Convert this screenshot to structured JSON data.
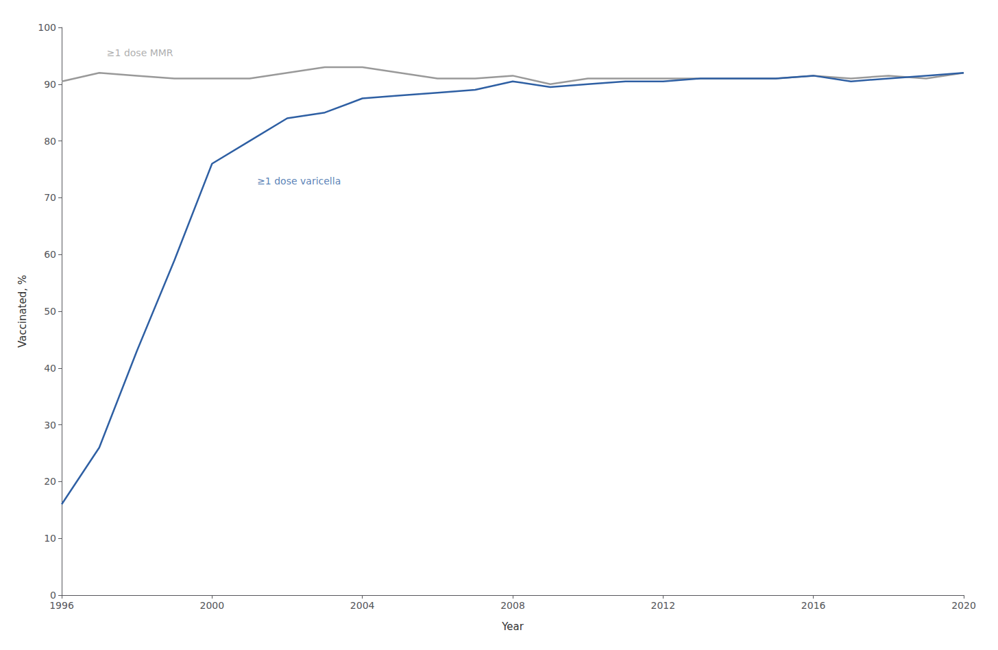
{
  "chart_data": {
    "type": "line",
    "x": [
      1996,
      1997,
      1998,
      1999,
      2000,
      2001,
      2002,
      2003,
      2004,
      2005,
      2006,
      2007,
      2008,
      2009,
      2010,
      2011,
      2012,
      2013,
      2014,
      2015,
      2016,
      2017,
      2018,
      2019,
      2020
    ],
    "series": [
      {
        "name": "≥1 dose MMR",
        "color": "#999999",
        "values": [
          90.5,
          92,
          91.5,
          91,
          91,
          91,
          92,
          93,
          93,
          92,
          91,
          91,
          91.5,
          90,
          91,
          91,
          91,
          91,
          91,
          91,
          91.5,
          91,
          91.5,
          91,
          92
        ]
      },
      {
        "name": "≥1 dose varicella",
        "color": "#2E5FA3",
        "values": [
          16,
          26,
          43,
          59,
          76,
          80,
          84,
          85,
          87.5,
          88,
          88.5,
          89,
          90.5,
          89.5,
          90,
          90.5,
          90.5,
          91,
          91,
          91,
          91.5,
          90.5,
          91,
          91.5,
          92
        ]
      }
    ],
    "annotations": [
      {
        "text": "≥1 dose MMR",
        "x": 1997.2,
        "y": 95.5,
        "color": "#999999"
      },
      {
        "text": "≥1 dose varicella",
        "x": 2001.2,
        "y": 73,
        "color": "#2E5FA3"
      }
    ],
    "xlabel": "Year",
    "ylabel": "Vaccinated, %",
    "xlim": [
      1996,
      2020
    ],
    "xticks": [
      1996,
      2000,
      2004,
      2008,
      2012,
      2016,
      2020
    ],
    "ylim": [
      0,
      100
    ],
    "yticks": [
      0,
      10,
      20,
      30,
      40,
      50,
      60,
      70,
      80,
      90,
      100
    ],
    "grid": false
  }
}
